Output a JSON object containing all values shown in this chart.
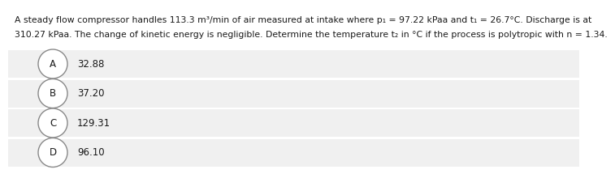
{
  "question_line1": "A steady flow compressor handles 113.3 m³/min of air measured at intake where p₁ = 97.22 kPaa and t₁ = 26.7°C. Discharge is at",
  "question_line2": "310.27 kPaa. The change of kinetic energy is negligible. Determine the temperature t₂ in °C if the process is polytropic with n = 1.34.",
  "options": [
    {
      "label": "A",
      "value": "32.88"
    },
    {
      "label": "B",
      "value": "37.20"
    },
    {
      "label": "C",
      "value": "129.31"
    },
    {
      "label": "D",
      "value": "96.10"
    }
  ],
  "bg_color": "#ffffff",
  "option_bg_color": "#f0f0f0",
  "option_separator_color": "#ffffff",
  "text_color": "#1a1a1a",
  "circle_edge_color": "#888888",
  "circle_fill_color": "#ffffff",
  "font_size_question": 7.8,
  "font_size_option": 8.5,
  "font_size_circle": 8.5
}
